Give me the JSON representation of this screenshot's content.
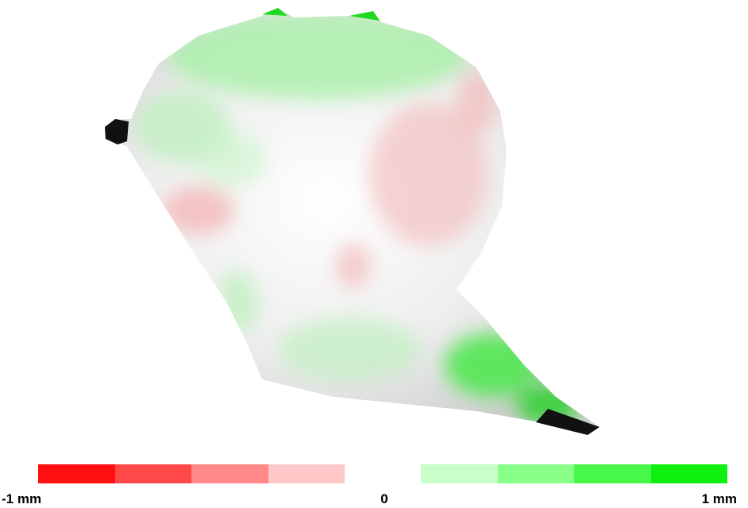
{
  "legend": {
    "min_label": "-1 mm",
    "mid_label": "0",
    "max_label": "1 mm"
  }
}
